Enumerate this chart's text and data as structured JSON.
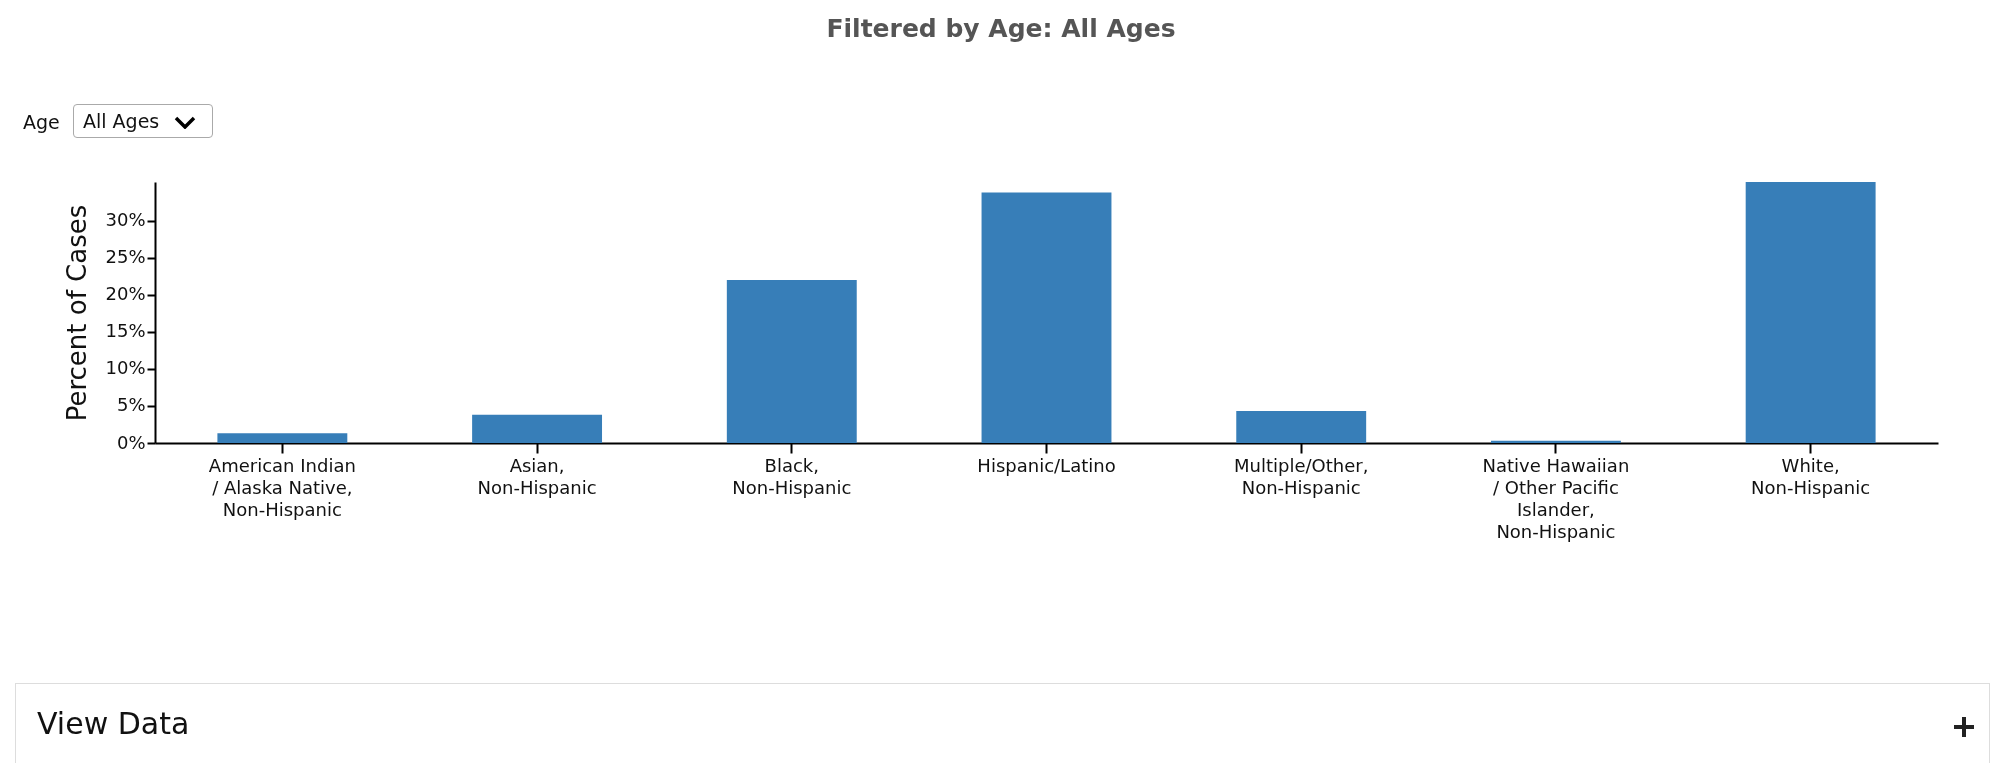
{
  "chart_data": {
    "type": "bar",
    "title": "Filtered by Age: All Ages",
    "ylabel": "Percent of Cases",
    "categories": [
      "American Indian / Alaska Native, Non-Hispanic",
      "Asian, Non-Hispanic",
      "Black, Non-Hispanic",
      "Hispanic/Latino",
      "Multiple/Other, Non-Hispanic",
      "Native Hawaiian / Other Pacific Islander, Non-Hispanic",
      "White, Non-Hispanic"
    ],
    "values": [
      1.3,
      3.8,
      22.0,
      33.8,
      4.3,
      0.3,
      35.2
    ],
    "color": "#377eb8",
    "ylim": [
      0,
      35.2
    ],
    "yticks": [
      {
        "value": 0,
        "label": "0%"
      },
      {
        "value": 5,
        "label": "5%"
      },
      {
        "value": 10,
        "label": "10%"
      },
      {
        "value": 15,
        "label": "15%"
      },
      {
        "value": 20,
        "label": "20%"
      },
      {
        "value": 25,
        "label": "25%"
      },
      {
        "value": 30,
        "label": "30%"
      }
    ],
    "grid": false,
    "annotations": [
      "Age",
      "All Ages",
      "View Data"
    ]
  }
}
